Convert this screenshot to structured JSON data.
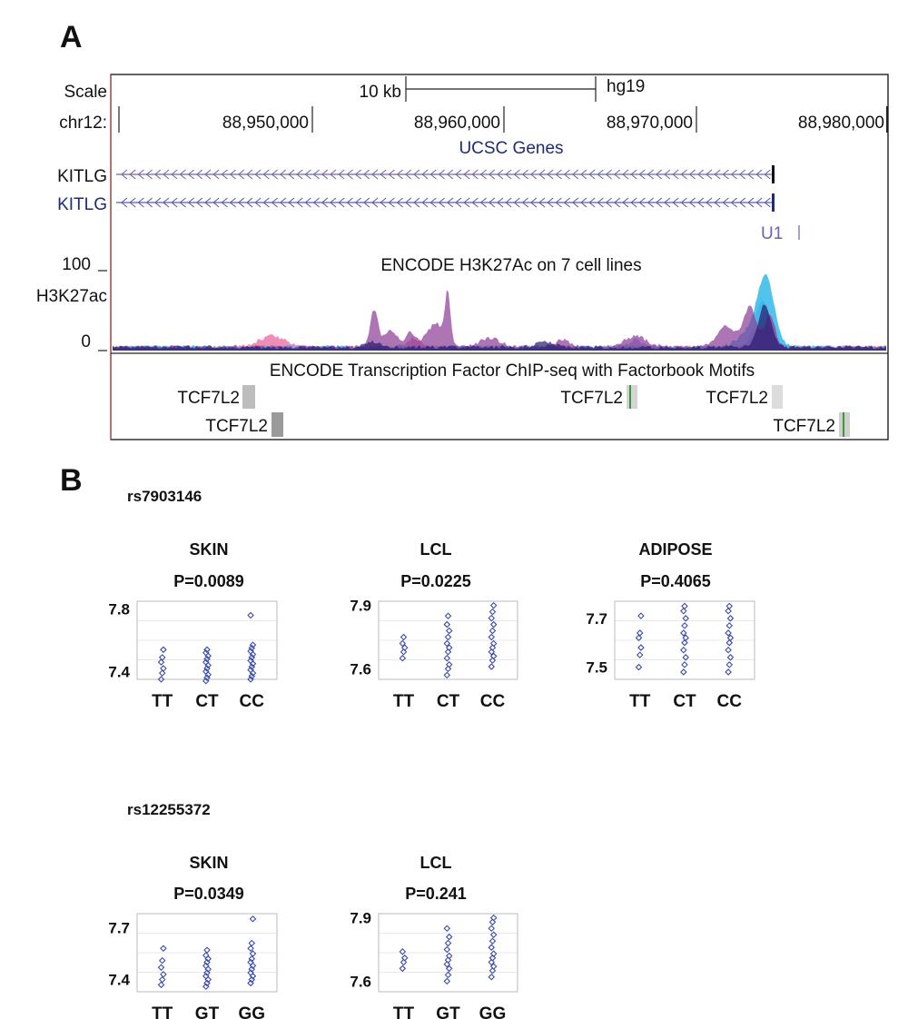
{
  "panels": {
    "a": {
      "letter": "A"
    },
    "b": {
      "letter": "B"
    }
  },
  "browser": {
    "scale_label": "Scale",
    "scale_bar_label": "10 kb",
    "assembly": "hg19",
    "chrom_label": "chr12:",
    "positions": [
      "88,950,000",
      "88,960,000",
      "88,970,000",
      "88,980,000"
    ],
    "genes_track_title": "UCSC Genes",
    "genes": [
      {
        "name": "KITLG",
        "color": "#111111"
      },
      {
        "name": "KITLG",
        "color": "#1f2a78"
      }
    ],
    "u1_label": "U1",
    "h3k27ac_title": "ENCODE H3K27Ac on 7 cell lines",
    "h3k27ac_ymax": "100",
    "h3k27ac_label": "H3K27ac",
    "h3k27ac_ymin": "0",
    "tfbs_title": "ENCODE Transcription Factor ChIP-seq with Factorbook Motifs",
    "tfbs_sites": [
      {
        "label": "TCF7L2",
        "row": 1,
        "shade": "#bdbdbd",
        "motif": false
      },
      {
        "label": "TCF7L2",
        "row": 2,
        "shade": "#9a9a9a",
        "motif": false
      },
      {
        "label": "TCF7L2",
        "row": 1,
        "shade": "#d4d4d4",
        "motif": true
      },
      {
        "label": "TCF7L2",
        "row": 1,
        "shade": "#dcdcdc",
        "motif": false
      },
      {
        "label": "TCF7L2",
        "row": 2,
        "shade": "#cfcfcf",
        "motif": true
      }
    ]
  },
  "snps": [
    {
      "id": "rs7903146"
    },
    {
      "id": "rs12255372"
    }
  ],
  "chart_data": [
    {
      "type": "scatter",
      "snp": "rs7903146",
      "tissue": "SKIN",
      "pvalue": "P=0.0089",
      "categories": [
        "TT",
        "CT",
        "CC"
      ],
      "ylim": [
        7.35,
        7.85
      ],
      "yticks": [
        7.4,
        7.8
      ],
      "series": [
        {
          "values": [
            [
              7.35,
              7.39,
              7.42,
              7.46,
              7.49,
              7.54
            ],
            [
              7.34,
              7.36,
              7.38,
              7.4,
              7.42,
              7.44,
              7.46,
              7.48,
              7.5,
              7.52,
              7.54
            ],
            [
              7.35,
              7.37,
              7.39,
              7.41,
              7.43,
              7.45,
              7.47,
              7.49,
              7.51,
              7.53,
              7.55,
              7.57,
              7.76
            ]
          ]
        }
      ]
    },
    {
      "type": "scatter",
      "snp": "rs7903146",
      "tissue": "LCL",
      "pvalue": "P=0.0225",
      "categories": [
        "TT",
        "CT",
        "CC"
      ],
      "ylim": [
        7.55,
        7.92
      ],
      "yticks": [
        7.6,
        7.9
      ],
      "series": [
        {
          "values": [
            [
              7.65,
              7.68,
              7.7,
              7.72,
              7.75
            ],
            [
              7.57,
              7.6,
              7.62,
              7.65,
              7.68,
              7.7,
              7.72,
              7.75,
              7.78,
              7.81,
              7.85
            ],
            [
              7.61,
              7.64,
              7.66,
              7.68,
              7.7,
              7.72,
              7.75,
              7.78,
              7.81,
              7.84,
              7.87,
              7.9
            ]
          ]
        }
      ]
    },
    {
      "type": "scatter",
      "snp": "rs7903146",
      "tissue": "ADIPOSE",
      "pvalue": "P=0.4065",
      "categories": [
        "TT",
        "CT",
        "CC"
      ],
      "ylim": [
        7.45,
        7.77
      ],
      "yticks": [
        7.5,
        7.7
      ],
      "series": [
        {
          "values": [
            [
              7.5,
              7.55,
              7.58,
              7.62,
              7.64,
              7.71
            ],
            [
              7.48,
              7.51,
              7.54,
              7.57,
              7.6,
              7.62,
              7.64,
              7.67,
              7.7,
              7.73,
              7.75
            ],
            [
              7.48,
              7.51,
              7.54,
              7.57,
              7.6,
              7.62,
              7.64,
              7.67,
              7.7,
              7.73,
              7.75
            ]
          ]
        }
      ]
    },
    {
      "type": "scatter",
      "snp": "rs12255372",
      "tissue": "SKIN",
      "pvalue": "P=0.0349",
      "categories": [
        "TT",
        "GT",
        "GG"
      ],
      "ylim": [
        7.33,
        7.78
      ],
      "yticks": [
        7.4,
        7.7
      ],
      "series": [
        {
          "values": [
            [
              7.37,
              7.4,
              7.43,
              7.47,
              7.51,
              7.58
            ],
            [
              7.36,
              7.38,
              7.4,
              7.42,
              7.44,
              7.46,
              7.48,
              7.5,
              7.52,
              7.54,
              7.57
            ],
            [
              7.38,
              7.4,
              7.42,
              7.44,
              7.46,
              7.48,
              7.5,
              7.52,
              7.55,
              7.58,
              7.61,
              7.75
            ]
          ]
        }
      ]
    },
    {
      "type": "scatter",
      "snp": "rs12255372",
      "tissue": "LCL",
      "pvalue": "P=0.241",
      "categories": [
        "TT",
        "GT",
        "GG"
      ],
      "ylim": [
        7.55,
        7.92
      ],
      "yticks": [
        7.6,
        7.9
      ],
      "series": [
        {
          "values": [
            [
              7.66,
              7.69,
              7.71,
              7.74
            ],
            [
              7.6,
              7.63,
              7.66,
              7.68,
              7.7,
              7.72,
              7.75,
              7.78,
              7.81,
              7.85
            ],
            [
              7.62,
              7.65,
              7.67,
              7.69,
              7.71,
              7.73,
              7.76,
              7.79,
              7.82,
              7.85,
              7.88,
              7.9
            ]
          ]
        }
      ]
    }
  ]
}
